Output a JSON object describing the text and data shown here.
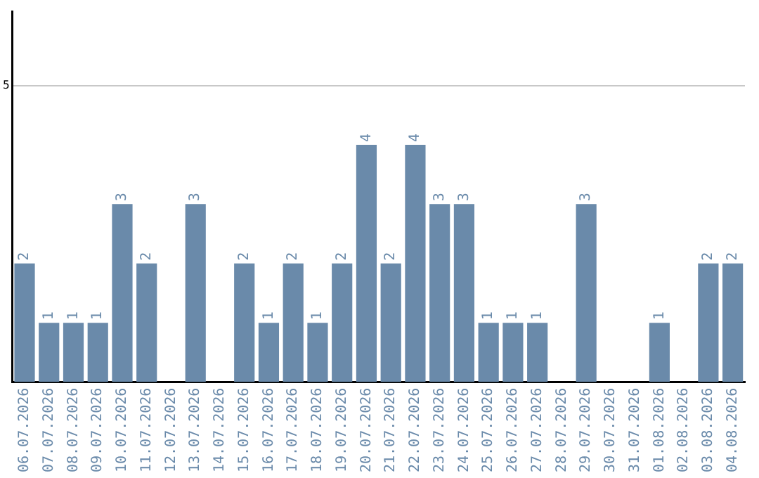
{
  "chart_data": {
    "type": "bar",
    "categories": [
      "06.07.2026",
      "07.07.2026",
      "08.07.2026",
      "09.07.2026",
      "10.07.2026",
      "11.07.2026",
      "12.07.2026",
      "13.07.2026",
      "14.07.2026",
      "15.07.2026",
      "16.07.2026",
      "17.07.2026",
      "18.07.2026",
      "19.07.2026",
      "20.07.2026",
      "21.07.2026",
      "22.07.2026",
      "23.07.2026",
      "24.07.2026",
      "25.07.2026",
      "26.07.2026",
      "27.07.2026",
      "28.07.2026",
      "29.07.2026",
      "30.07.2026",
      "31.07.2026",
      "01.08.2026",
      "02.08.2026",
      "03.08.2026",
      "04.08.2026"
    ],
    "values": [
      2,
      1,
      1,
      1,
      3,
      2,
      null,
      3,
      null,
      2,
      1,
      2,
      1,
      2,
      4,
      2,
      4,
      3,
      3,
      1,
      1,
      1,
      null,
      3,
      null,
      null,
      1,
      null,
      2,
      2
    ],
    "color": "#6a8aaa",
    "ylim": [
      0,
      6.25
    ],
    "yticks": [
      5
    ],
    "grid": "y",
    "legend": false,
    "data_labels": true
  }
}
